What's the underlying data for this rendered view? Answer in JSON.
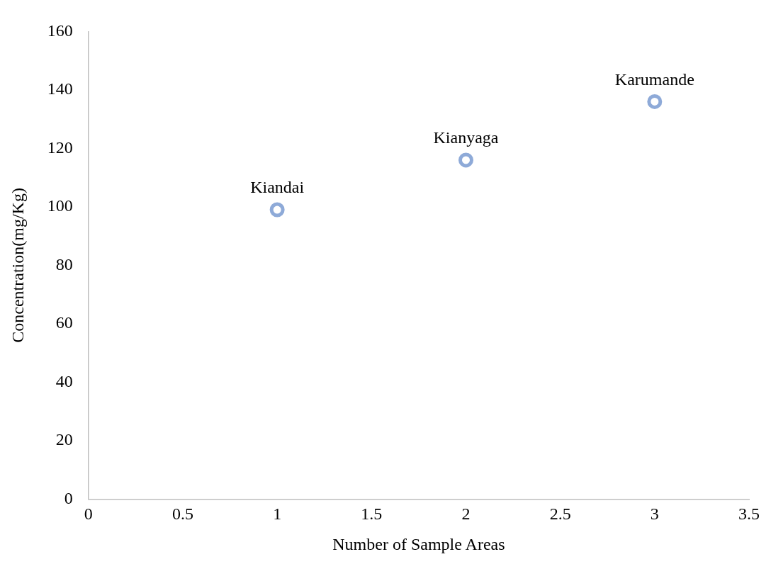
{
  "chart_data": {
    "type": "scatter",
    "xlabel": "Number of Sample Areas",
    "ylabel": "Concentration(mg/Kg)",
    "x": [
      1,
      2,
      3
    ],
    "series": [
      {
        "color": "#8eaad8",
        "values": [
          99,
          116,
          136
        ]
      }
    ],
    "xlim": [
      0,
      3.5
    ],
    "xticks": [
      0,
      0.5,
      1,
      1.5,
      2,
      2.5,
      3,
      3.5
    ],
    "ylim": [
      0,
      160
    ],
    "yticks": [
      0,
      20,
      40,
      60,
      80,
      100,
      120,
      140,
      160
    ],
    "grid": false,
    "legend": false,
    "marker": "circle",
    "annotations": [
      {
        "text": "Kiandai",
        "x": 1,
        "y": 99
      },
      {
        "text": "Kianyaga",
        "x": 2,
        "y": 116
      },
      {
        "text": "Karumande",
        "x": 3,
        "y": 136
      }
    ]
  }
}
